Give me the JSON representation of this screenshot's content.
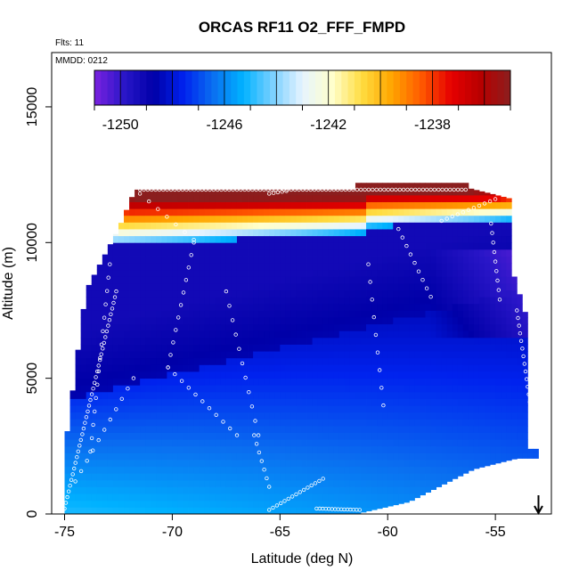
{
  "chart_data": {
    "type": "heatmap",
    "title": "ORCAS RF11 O2_FFF_FMPD",
    "annotations": [
      "Flts: 11",
      "MMDD: 0212"
    ],
    "xlabel": "Latitude (deg N)",
    "ylabel": "Altitude (m)",
    "xlim": [
      -75.6,
      -52.4
    ],
    "ylim": [
      0,
      17000
    ],
    "x_ticks": [
      -75,
      -70,
      -65,
      -60,
      -55
    ],
    "x_tick_labels": [
      "-75",
      "-70",
      "-65",
      "-60",
      "-55"
    ],
    "y_ticks": [
      0,
      5000,
      10000,
      15000
    ],
    "y_tick_labels": [
      "0",
      "5000",
      "10000",
      "15000"
    ],
    "colorbar": {
      "range": [
        -1251,
        -1235
      ],
      "ticks": [
        -1250,
        -1246,
        -1242,
        -1238
      ],
      "tick_labels": [
        "-1250",
        "-1246",
        "-1242",
        "-1238"
      ],
      "colors": [
        "#7b22e0",
        "#2a16c8",
        "#0000a8",
        "#0022ee",
        "#0a6ff0",
        "#00b2ff",
        "#7ad0ff",
        "#e6f4ff",
        "#ffffcc",
        "#ffdc40",
        "#ffa500",
        "#ff5a00",
        "#e60000",
        "#b80000",
        "#8b1e1e"
      ]
    },
    "arrow_marker": {
      "latitude": -53,
      "direction": "down"
    },
    "grid": false,
    "legend": "colorbar inside plot, top"
  }
}
